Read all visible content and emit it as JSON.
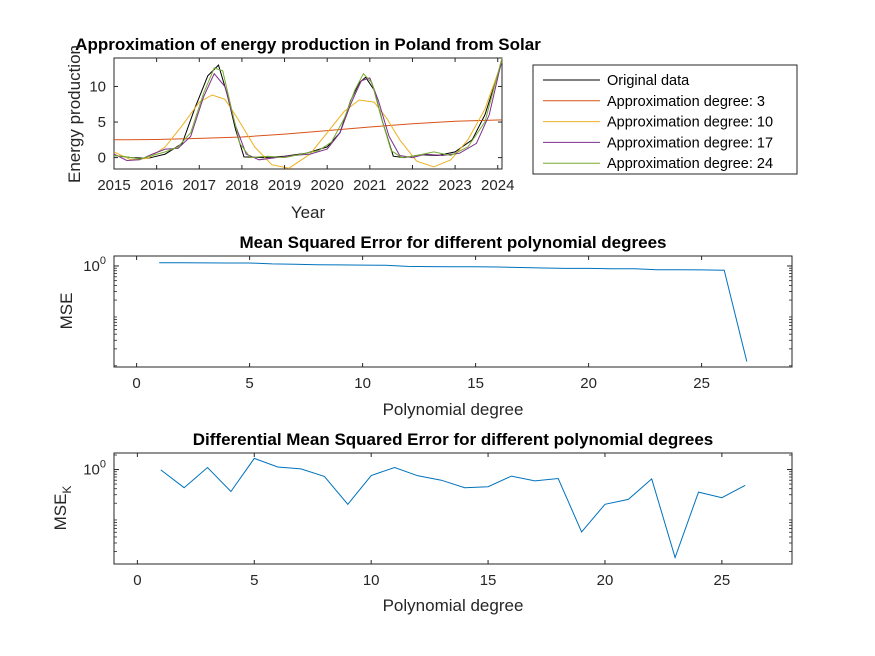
{
  "chart_data": [
    {
      "type": "line",
      "title": "Approximation of energy production in Poland from Solar",
      "xlabel": "Year",
      "ylabel": "Energy production",
      "xlim": [
        2015,
        2024.1
      ],
      "ylim": [
        -1.6,
        14
      ],
      "xticks": [
        2015,
        2016,
        2017,
        2018,
        2019,
        2020,
        2021,
        2022,
        2023,
        2024
      ],
      "yticks": [
        0,
        5,
        10
      ],
      "legend_position": "outside-right",
      "series": [
        {
          "name": "Original data",
          "color": "#000000",
          "x": [
            2015,
            2015.4,
            2015.8,
            2016.2,
            2016.6,
            2016.9,
            2017.2,
            2017.45,
            2017.65,
            2017.85,
            2018.05,
            2018.5,
            2019,
            2019.5,
            2020,
            2020.3,
            2020.55,
            2020.75,
            2020.9,
            2021.1,
            2021.3,
            2021.55,
            2021.8,
            2022.2,
            2022.6,
            2023,
            2023.4,
            2023.7,
            2024.1
          ],
          "y": [
            0.3,
            0,
            -0.1,
            0.5,
            2,
            7,
            11.5,
            13,
            9,
            4,
            0.1,
            0,
            0.2,
            0.6,
            1.5,
            3.5,
            8,
            10.5,
            11.3,
            9.5,
            5,
            0.2,
            0,
            0.4,
            0.3,
            0.8,
            2.5,
            6,
            13.5
          ]
        },
        {
          "name": "Approximation degree: 3",
          "color": "#d95319",
          "x": [
            2015,
            2016,
            2017,
            2018,
            2019,
            2020,
            2021,
            2022,
            2023,
            2024.1
          ],
          "y": [
            2.5,
            2.55,
            2.7,
            2.9,
            3.3,
            3.8,
            4.3,
            4.75,
            5.1,
            5.3
          ]
        },
        {
          "name": "Approximation degree: 10",
          "color": "#edb120",
          "x": [
            2015,
            2015.4,
            2015.8,
            2016.2,
            2016.6,
            2017,
            2017.3,
            2017.6,
            2017.9,
            2018.3,
            2018.7,
            2019.1,
            2019.6,
            2020,
            2020.4,
            2020.75,
            2021.1,
            2021.4,
            2021.7,
            2022.1,
            2022.5,
            2022.9,
            2023.3,
            2023.7,
            2024.1
          ],
          "y": [
            0.8,
            -0.3,
            -0.1,
            1.5,
            4.5,
            7.8,
            8.8,
            8.2,
            5.5,
            1.5,
            -1,
            -1.5,
            0.5,
            3.5,
            6.5,
            8.1,
            7.8,
            5.5,
            2.5,
            -0.5,
            -1.3,
            -0.3,
            2.5,
            6.8,
            13.5
          ]
        },
        {
          "name": "Approximation degree: 17",
          "color": "#7e2f8e",
          "x": [
            2015,
            2015.3,
            2015.6,
            2015.9,
            2016.2,
            2016.5,
            2016.8,
            2017.1,
            2017.35,
            2017.6,
            2017.85,
            2018.1,
            2018.4,
            2018.8,
            2019.2,
            2019.6,
            2020,
            2020.3,
            2020.55,
            2020.8,
            2021,
            2021.2,
            2021.45,
            2021.7,
            2022,
            2022.3,
            2022.7,
            2023.1,
            2023.5,
            2023.8,
            2024.1
          ],
          "y": [
            0.5,
            -0.4,
            -0.3,
            0.5,
            1.2,
            1.3,
            3,
            8.5,
            11.8,
            10,
            4.5,
            0.5,
            -0.3,
            0,
            0.3,
            0.5,
            1.2,
            3.5,
            7.5,
            10.8,
            11.2,
            8,
            3,
            0.3,
            0,
            0.5,
            0.3,
            0.6,
            2,
            6,
            13.8
          ]
        },
        {
          "name": "Approximation degree: 24",
          "color": "#77ac30",
          "x": [
            2015,
            2015.3,
            2015.6,
            2015.9,
            2016.2,
            2016.5,
            2016.8,
            2017.1,
            2017.35,
            2017.55,
            2017.75,
            2017.95,
            2018.2,
            2018.6,
            2019,
            2019.4,
            2019.8,
            2020.1,
            2020.4,
            2020.65,
            2020.85,
            2021.05,
            2021.25,
            2021.5,
            2021.75,
            2022.1,
            2022.5,
            2022.9,
            2023.3,
            2023.7,
            2024.1
          ],
          "y": [
            0.3,
            0.1,
            -0.2,
            0.3,
            0.8,
            1.5,
            3.5,
            9,
            12.6,
            12.2,
            7,
            2,
            0,
            0.2,
            0,
            0.5,
            1,
            2.2,
            5.5,
            9.5,
            11.8,
            10.5,
            6,
            1,
            0,
            0.3,
            0.8,
            0.3,
            1.5,
            5,
            14
          ]
        }
      ]
    },
    {
      "type": "line",
      "title": "Mean Squared Error for different polynomial degrees",
      "xlabel": "Polynomial degree",
      "ylabel": "MSE",
      "yscale": "log",
      "xlim": [
        -1,
        29
      ],
      "ylim": [
        0.0085,
        1.6
      ],
      "xticks": [
        0,
        5,
        10,
        15,
        20,
        25
      ],
      "yticks": [
        1
      ],
      "ytick_labels": [
        "10^0"
      ],
      "series": [
        {
          "color": "#0072bd",
          "x": [
            1,
            2,
            3,
            4,
            5,
            6,
            7,
            8,
            9,
            10,
            11,
            12,
            13,
            14,
            15,
            16,
            17,
            18,
            19,
            20,
            21,
            22,
            23,
            24,
            25,
            26,
            27
          ],
          "y": [
            1.16,
            1.16,
            1.155,
            1.15,
            1.15,
            1.1,
            1.08,
            1.06,
            1.05,
            1.04,
            1.03,
            0.98,
            0.97,
            0.96,
            0.96,
            0.95,
            0.93,
            0.91,
            0.89,
            0.89,
            0.88,
            0.88,
            0.84,
            0.84,
            0.83,
            0.82,
            0.011
          ]
        }
      ]
    },
    {
      "type": "line",
      "title": "Differential Mean Squared Error for different polynomial degrees",
      "xlabel": "Polynomial degree",
      "ylabel": "MSE",
      "ylabel_subscript": "K",
      "yscale": "log",
      "xlim": [
        -1,
        28
      ],
      "ylim": [
        0.011,
        2.2
      ],
      "xticks": [
        0,
        5,
        10,
        15,
        20,
        25
      ],
      "yticks": [
        1
      ],
      "ytick_labels": [
        "10^0"
      ],
      "series": [
        {
          "color": "#0072bd",
          "x": [
            1,
            2,
            3,
            4,
            5,
            6,
            7,
            8,
            9,
            10,
            11,
            12,
            13,
            14,
            15,
            16,
            17,
            18,
            19,
            20,
            21,
            22,
            23,
            24,
            25,
            26
          ],
          "y": [
            0.98,
            0.42,
            1.1,
            0.35,
            1.7,
            1.13,
            1.03,
            0.72,
            0.19,
            0.75,
            1.1,
            0.74,
            0.6,
            0.42,
            0.44,
            0.73,
            0.58,
            0.65,
            0.051,
            0.19,
            0.24,
            0.64,
            0.015,
            0.34,
            0.26,
            0.47
          ]
        }
      ]
    }
  ]
}
